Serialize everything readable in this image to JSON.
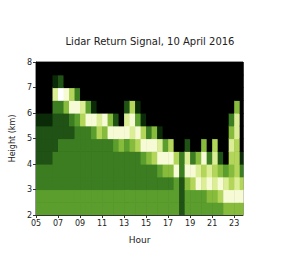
{
  "chart_data": {
    "type": "heatmap",
    "title": "Lidar Return Signal, 10 April 2016",
    "x_label": "Hour",
    "y_label": "Height (km)",
    "x_bins": [
      5,
      5.5,
      6,
      6.5,
      7,
      7.5,
      8,
      8.5,
      9,
      9.5,
      10,
      10.5,
      11,
      11.5,
      12,
      12.5,
      13,
      13.5,
      14,
      14.5,
      15,
      15.5,
      16,
      16.5,
      17,
      17.5,
      18,
      18.5,
      19,
      19.5,
      20,
      20.5,
      21,
      21.5,
      22,
      22.5,
      23,
      23.5,
      23.8
    ],
    "y_bins": [
      2,
      2.5,
      3,
      3.5,
      4,
      4.5,
      5,
      5.5,
      6,
      6.5,
      7,
      7.5,
      8
    ],
    "values": [
      [
        4,
        4,
        3,
        3,
        2,
        2,
        2,
        1,
        0,
        0,
        0,
        0
      ],
      [
        4,
        4,
        3,
        3,
        2,
        2,
        2,
        1,
        0,
        0,
        0,
        0
      ],
      [
        4,
        4,
        3,
        3,
        2,
        2,
        2,
        1,
        0,
        0,
        0,
        0
      ],
      [
        4,
        4,
        3,
        3,
        3,
        2,
        2,
        2,
        3,
        7,
        1,
        0
      ],
      [
        4,
        4,
        3,
        3,
        3,
        3,
        2,
        2,
        3,
        9,
        2,
        0
      ],
      [
        4,
        4,
        3,
        3,
        3,
        3,
        2,
        2,
        5,
        8,
        0,
        0
      ],
      [
        4,
        4,
        3,
        3,
        3,
        3,
        2,
        3,
        8,
        6,
        0,
        0
      ],
      [
        4,
        4,
        3,
        3,
        3,
        3,
        3,
        4,
        8,
        3,
        0,
        0
      ],
      [
        4,
        4,
        3,
        3,
        3,
        3,
        3,
        6,
        7,
        0,
        0,
        0
      ],
      [
        4,
        4,
        3,
        3,
        3,
        3,
        3,
        8,
        4,
        0,
        0,
        0
      ],
      [
        4,
        4,
        3,
        3,
        3,
        3,
        4,
        8,
        1,
        0,
        0,
        0
      ],
      [
        4,
        4,
        3,
        3,
        3,
        3,
        6,
        7,
        0,
        0,
        0,
        0
      ],
      [
        4,
        4,
        3,
        3,
        3,
        3,
        5,
        8,
        0,
        0,
        0,
        0
      ],
      [
        4,
        4,
        3,
        3,
        3,
        3,
        8,
        5,
        0,
        0,
        0,
        0
      ],
      [
        4,
        4,
        3,
        3,
        3,
        4,
        8,
        2,
        0,
        0,
        0,
        0
      ],
      [
        4,
        4,
        3,
        3,
        3,
        5,
        8,
        0,
        0,
        0,
        0,
        0
      ],
      [
        4,
        4,
        3,
        3,
        3,
        4,
        8,
        7,
        2,
        0,
        0,
        0
      ],
      [
        4,
        4,
        3,
        3,
        3,
        5,
        7,
        8,
        6,
        0,
        0,
        0
      ],
      [
        4,
        4,
        3,
        3,
        3,
        6,
        8,
        4,
        1,
        0,
        0,
        0
      ],
      [
        4,
        4,
        3,
        3,
        4,
        8,
        6,
        1,
        0,
        0,
        0,
        0
      ],
      [
        4,
        4,
        3,
        3,
        5,
        8,
        3,
        0,
        0,
        0,
        0,
        0
      ],
      [
        4,
        4,
        3,
        3,
        6,
        8,
        5,
        0,
        0,
        0,
        0,
        0
      ],
      [
        4,
        4,
        3,
        4,
        8,
        7,
        1,
        0,
        0,
        0,
        0,
        0
      ],
      [
        4,
        4,
        3,
        5,
        8,
        4,
        0,
        0,
        0,
        0,
        0,
        0
      ],
      [
        4,
        4,
        3,
        5,
        8,
        6,
        0,
        0,
        0,
        0,
        0,
        0
      ],
      [
        4,
        4,
        4,
        8,
        6,
        0,
        0,
        0,
        0,
        0,
        0,
        0
      ],
      [
        2,
        2,
        2,
        3,
        3,
        0,
        0,
        0,
        0,
        0,
        0,
        0
      ],
      [
        4,
        4,
        5,
        8,
        7,
        2,
        0,
        0,
        0,
        0,
        0,
        0
      ],
      [
        4,
        4,
        6,
        8,
        3,
        0,
        0,
        0,
        0,
        0,
        0,
        0
      ],
      [
        4,
        4,
        8,
        7,
        5,
        0,
        0,
        0,
        0,
        0,
        0,
        0
      ],
      [
        4,
        4,
        7,
        6,
        8,
        5,
        0,
        0,
        0,
        0,
        0,
        0
      ],
      [
        4,
        5,
        8,
        7,
        3,
        0,
        0,
        0,
        0,
        0,
        0,
        0
      ],
      [
        4,
        5,
        7,
        6,
        7,
        6,
        0,
        0,
        0,
        0,
        0,
        0
      ],
      [
        4,
        6,
        8,
        5,
        2,
        0,
        0,
        0,
        0,
        0,
        0,
        0
      ],
      [
        5,
        8,
        7,
        4,
        0,
        0,
        0,
        0,
        0,
        0,
        0,
        0
      ],
      [
        5,
        8,
        6,
        5,
        6,
        7,
        5,
        3,
        0,
        0,
        0,
        0
      ],
      [
        5,
        8,
        7,
        6,
        6,
        6,
        7,
        7,
        5,
        0,
        0,
        0
      ],
      [
        5,
        8,
        6,
        3,
        1,
        0,
        0,
        0,
        0,
        0,
        0,
        0
      ]
    ],
    "zlim": [
      0,
      9
    ],
    "xlim": [
      5,
      23.8
    ],
    "ylim": [
      2,
      8
    ],
    "xticks": [
      {
        "value": 5,
        "label": "05"
      },
      {
        "value": 7,
        "label": "07"
      },
      {
        "value": 9,
        "label": "09"
      },
      {
        "value": 11,
        "label": "11"
      },
      {
        "value": 13,
        "label": "13"
      },
      {
        "value": 15,
        "label": "15"
      },
      {
        "value": 17,
        "label": "17"
      },
      {
        "value": 19,
        "label": "19"
      },
      {
        "value": 21,
        "label": "21"
      },
      {
        "value": 23,
        "label": "23"
      }
    ],
    "yticks": [
      2,
      3,
      4,
      5,
      6,
      7,
      8
    ]
  }
}
